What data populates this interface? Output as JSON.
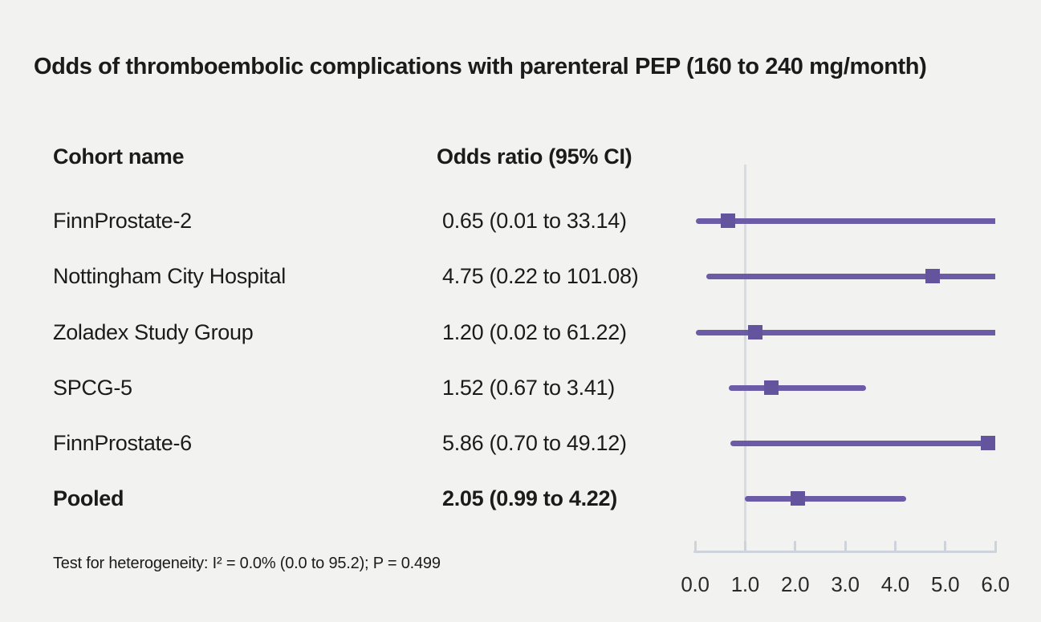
{
  "chart_data": {
    "type": "forest",
    "title": "Odds of thromboembolic complications with parenteral PEP (160 to 240 mg/month)",
    "column_headers": {
      "cohort": "Cohort name",
      "odds_ratio": "Odds ratio (95% CI)"
    },
    "rows": [
      {
        "cohort": "FinnProstate-2",
        "or_label": "0.65 (0.01 to 33.14)",
        "or": 0.65,
        "ci_low": 0.01,
        "ci_high": 33.14,
        "pooled": false
      },
      {
        "cohort": "Nottingham City Hospital",
        "or_label": "4.75 (0.22 to 101.08)",
        "or": 4.75,
        "ci_low": 0.22,
        "ci_high": 101.08,
        "pooled": false
      },
      {
        "cohort": "Zoladex Study Group",
        "or_label": "1.20 (0.02 to 61.22)",
        "or": 1.2,
        "ci_low": 0.02,
        "ci_high": 61.22,
        "pooled": false
      },
      {
        "cohort": "SPCG-5",
        "or_label": "1.52 (0.67 to 3.41)",
        "or": 1.52,
        "ci_low": 0.67,
        "ci_high": 3.41,
        "pooled": false
      },
      {
        "cohort": "FinnProstate-6",
        "or_label": "5.86 (0.70 to 49.12)",
        "or": 5.86,
        "ci_low": 0.7,
        "ci_high": 49.12,
        "pooled": false
      },
      {
        "cohort": "Pooled",
        "or_label": "2.05 (0.99 to 4.22)",
        "or": 2.05,
        "ci_low": 0.99,
        "ci_high": 4.22,
        "pooled": true
      }
    ],
    "x_axis": {
      "min": 0,
      "max": 6,
      "tick_labels": [
        "0.0",
        "1.0",
        "2.0",
        "3.0",
        "4.0",
        "5.0",
        "6.0"
      ],
      "reference_line": 1.0
    },
    "footnote": "Test for heterogeneity: I² = 0.0% (0.0 to 95.2); P = 0.499",
    "colors": {
      "ci_line": "#6C5CA8",
      "marker": "#64549E",
      "axis": "#CDD2DB",
      "reference_line": "#D8DBE2",
      "background": "#F2F2F1",
      "text": "#1B1B1B"
    }
  }
}
